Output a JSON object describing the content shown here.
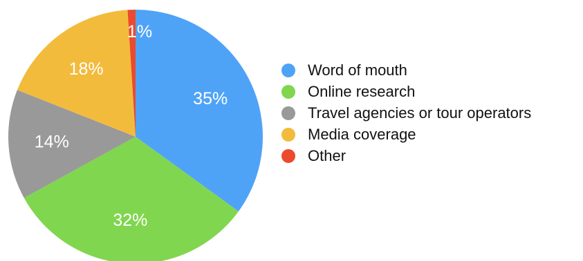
{
  "chart_data": {
    "type": "pie",
    "title": "",
    "slices": [
      {
        "name": "Word of mouth",
        "value": 35,
        "label": "35%",
        "color": "#4fa3f7"
      },
      {
        "name": "Online research",
        "value": 32,
        "label": "32%",
        "color": "#80d64f"
      },
      {
        "name": "Travel agencies or tour operators",
        "value": 14,
        "label": "14%",
        "color": "#999999"
      },
      {
        "name": "Media coverage",
        "value": 18,
        "label": "18%",
        "color": "#f3bb3c"
      },
      {
        "name": "Other",
        "value": 1,
        "label": "1%",
        "color": "#ec4a2c"
      }
    ],
    "legend_position": "right",
    "start_angle": "12 o'clock",
    "direction": "clockwise"
  }
}
